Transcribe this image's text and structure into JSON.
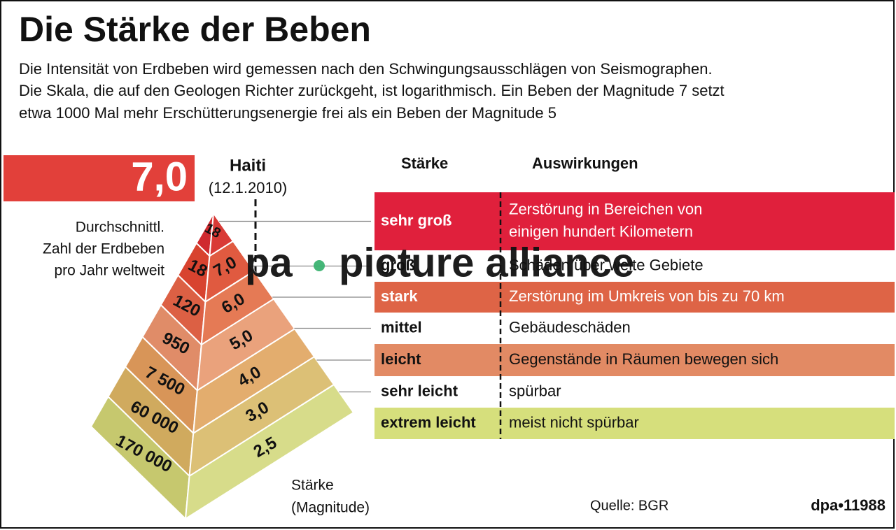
{
  "header": {
    "title": "Die Stärke der Beben",
    "subtitle": [
      "Die Intensität von Erdbeben wird gemessen nach den Schwingungsausschlägen von Seismographen.",
      "Die Skala, die auf den Geologen Richter zurückgeht, ist logarithmisch. Ein Beben der Magnitude 7 setzt",
      "etwa 1000 Mal mehr Erschütterungsenergie frei als ein Beben der Magnitude 5"
    ]
  },
  "highlight": {
    "value": "7,0",
    "event": "Haiti",
    "date": "(12.1.2010)"
  },
  "pyramid": {
    "count_label": [
      "Durchschnittl.",
      "Zahl der Erdbeben",
      "pro Jahr weltweit"
    ],
    "magnitude_label": [
      "Stärke",
      "(Magnitude)"
    ],
    "layers": [
      {
        "count": "18"
      },
      {
        "count": "18",
        "magnitude": "7,0"
      },
      {
        "count": "120",
        "magnitude": "6,0"
      },
      {
        "count": "950",
        "magnitude": "5,0"
      },
      {
        "count": "7 500",
        "magnitude": "4,0"
      },
      {
        "count": "60 000",
        "magnitude": "3,0"
      },
      {
        "count": "170 000",
        "magnitude": "2,5"
      }
    ]
  },
  "table": {
    "headers": [
      "Stärke",
      "Auswirkungen"
    ],
    "rows": [
      [
        "sehr groß",
        "Zerstörung in Bereichen von einigen hundert Kilometern"
      ],
      [
        "groß",
        "Schäden über weite Gebiete"
      ],
      [
        "stark",
        "Zerstörung im Umkreis von bis zu 70 km"
      ],
      [
        "mittel",
        "Gebäudeschäden"
      ],
      [
        "leicht",
        "Gegenstände in Räumen bewegen sich"
      ],
      [
        "sehr leicht",
        "spürbar"
      ],
      [
        "extrem leicht",
        "meist nicht spürbar"
      ]
    ]
  },
  "footer": {
    "source": "Quelle: BGR",
    "credit": "dpa•11988"
  },
  "watermark": {
    "left": "pa",
    "right": "picture alliance"
  }
}
